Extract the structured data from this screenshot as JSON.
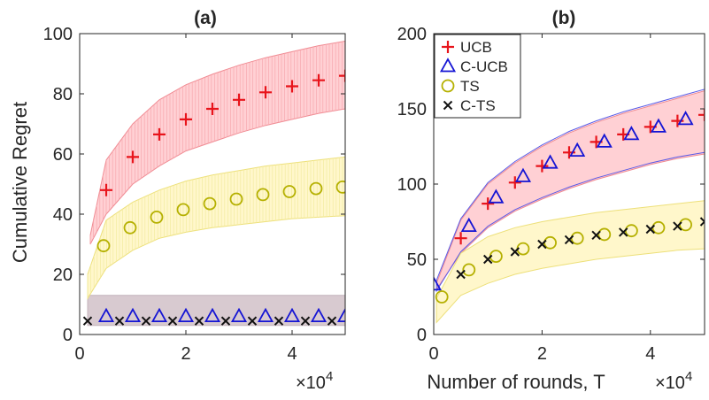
{
  "x_label": "Number of rounds, T",
  "y_label": "Cumulative Regret",
  "colors": {
    "ucb": "#e8141b",
    "cucb": "#1414d4",
    "ts": "#b5b000",
    "cts": "#111111",
    "ucb_band": "#ffc8cc",
    "ts_band": "#fff6c2",
    "cucb_band": "#d8cad0"
  },
  "legend": {
    "placement": "top-left of panel (b)",
    "entries": [
      {
        "name": "UCB",
        "marker": "plus",
        "color": "#e8141b"
      },
      {
        "name": "C-UCB",
        "marker": "triangle",
        "color": "#1414d4"
      },
      {
        "name": "TS",
        "marker": "circle",
        "color": "#b5b000"
      },
      {
        "name": "C-TS",
        "marker": "cross",
        "color": "#111111"
      }
    ]
  },
  "chart_data": [
    {
      "type": "scatter",
      "title": "(a)",
      "xlabel": "",
      "ylabel": "Cumulative Regret",
      "x_multiplier": "×10",
      "x_multiplier_exp": "4",
      "xlim": [
        0,
        50000
      ],
      "ylim": [
        0,
        100
      ],
      "xticks": [
        0,
        20000,
        40000
      ],
      "xtick_labels": [
        "0",
        "2",
        "4"
      ],
      "yticks": [
        0,
        20,
        40,
        60,
        80,
        100
      ],
      "ytick_labels": [
        "0",
        "20",
        "40",
        "60",
        "80",
        "100"
      ],
      "grid": false,
      "series": [
        {
          "name": "UCB",
          "key": "ucb",
          "marker": "plus",
          "x": [
            5000,
            10000,
            15000,
            20000,
            25000,
            30000,
            35000,
            40000,
            45000,
            50000
          ],
          "y": [
            48,
            59,
            66.5,
            71.5,
            75,
            78,
            80.5,
            82.5,
            84.5,
            86
          ],
          "band": {
            "x": [
              2000,
              5000,
              10000,
              15000,
              20000,
              25000,
              30000,
              35000,
              40000,
              45000,
              50000
            ],
            "lower": [
              30,
              40,
              50,
              56,
              61,
              64,
              67,
              69.5,
              71.5,
              73.5,
              75
            ],
            "upper": [
              33,
              58,
              70,
              78,
              83,
              86.5,
              89.5,
              92,
              94,
              96,
              97.5
            ]
          }
        },
        {
          "name": "C-UCB",
          "key": "cucb",
          "marker": "triangle",
          "x": [
            5000,
            10000,
            15000,
            20000,
            25000,
            30000,
            35000,
            40000,
            45000,
            50000
          ],
          "y": [
            6,
            6,
            6,
            6,
            6,
            6,
            6,
            6,
            6,
            6
          ],
          "band": {
            "x": [
              1500,
              50000
            ],
            "lower": [
              3,
              3
            ],
            "upper": [
              13,
              13
            ]
          }
        },
        {
          "name": "TS",
          "key": "ts",
          "marker": "circle",
          "x": [
            4500,
            9500,
            14500,
            19500,
            24500,
            29500,
            34500,
            39500,
            44500,
            49500
          ],
          "y": [
            29.5,
            35.5,
            39,
            41.5,
            43.5,
            45,
            46.5,
            47.5,
            48.5,
            49
          ],
          "band": {
            "x": [
              1500,
              5000,
              10000,
              15000,
              20000,
              25000,
              30000,
              35000,
              40000,
              45000,
              50000
            ],
            "lower": [
              12,
              22,
              28,
              32,
              34,
              35.5,
              36.5,
              37.5,
              38.5,
              39,
              39.5
            ],
            "upper": [
              20,
              38,
              44,
              48,
              51,
              53,
              54.5,
              56,
              57,
              58,
              59
            ]
          }
        },
        {
          "name": "C-TS",
          "key": "cts",
          "marker": "cross",
          "x": [
            1500,
            7500,
            12500,
            17500,
            22500,
            27500,
            32500,
            37500,
            42500,
            47500
          ],
          "y": [
            4.5,
            4.5,
            4.5,
            4.5,
            4.5,
            4.5,
            4.5,
            4.5,
            4.5,
            4.5
          ]
        }
      ]
    },
    {
      "type": "scatter",
      "title": "(b)",
      "xlabel": "Number of rounds, T",
      "ylabel": "",
      "x_multiplier": "×10",
      "x_multiplier_exp": "4",
      "xlim": [
        0,
        50000
      ],
      "ylim": [
        0,
        200
      ],
      "xticks": [
        0,
        20000,
        40000
      ],
      "xtick_labels": [
        "0",
        "2",
        "4"
      ],
      "yticks": [
        0,
        50,
        100,
        150,
        200
      ],
      "ytick_labels": [
        "0",
        "50",
        "100",
        "150",
        "200"
      ],
      "grid": false,
      "series": [
        {
          "name": "UCB",
          "key": "ucb",
          "marker": "plus",
          "x": [
            5000,
            10000,
            15000,
            20000,
            25000,
            30000,
            35000,
            40000,
            45000,
            50000
          ],
          "y": [
            64,
            87,
            101,
            112,
            121,
            128,
            133,
            138,
            142,
            146
          ],
          "band": {
            "x": [
              500,
              5000,
              10000,
              15000,
              20000,
              25000,
              30000,
              35000,
              40000,
              45000,
              50000
            ],
            "lower": [
              30,
              54,
              71,
              82,
              90,
              97,
              103,
              108,
              113,
              117,
              120
            ],
            "upper": [
              34,
              76,
              100,
              114,
              125,
              134,
              141,
              147,
              152,
              157,
              162
            ]
          }
        },
        {
          "name": "C-UCB",
          "key": "cucb",
          "marker": "triangle",
          "x": [
            0,
            6500,
            11500,
            16500,
            21500,
            26500,
            31500,
            36500,
            41500,
            46500
          ],
          "y": [
            33,
            72,
            91,
            105,
            114,
            122,
            128,
            133,
            138,
            143
          ],
          "band": {
            "x": [
              500,
              5000,
              10000,
              15000,
              20000,
              25000,
              30000,
              35000,
              40000,
              45000,
              50000
            ],
            "lower": [
              29,
              55,
              72,
              83,
              91,
              98,
              104,
              109,
              114,
              118,
              121
            ],
            "upper": [
              36,
              77,
              101,
              115,
              126,
              135,
              142,
              148,
              153,
              158,
              163
            ]
          }
        },
        {
          "name": "TS",
          "key": "ts",
          "marker": "circle",
          "x": [
            1500,
            6500,
            11500,
            16500,
            21500,
            26500,
            31500,
            36500,
            41500,
            46500
          ],
          "y": [
            25,
            43,
            52,
            57,
            61,
            64,
            66.5,
            69,
            71,
            73
          ],
          "band": {
            "x": [
              500,
              5000,
              10000,
              15000,
              20000,
              25000,
              30000,
              35000,
              40000,
              45000,
              50000
            ],
            "lower": [
              8,
              26,
              34,
              40,
              44,
              47,
              50,
              52,
              54,
              56,
              57
            ],
            "upper": [
              24,
              54,
              65,
              71,
              75,
              78,
              81,
              83,
              85,
              87,
              89
            ]
          }
        },
        {
          "name": "C-TS",
          "key": "cts",
          "marker": "cross",
          "x": [
            5000,
            10000,
            15000,
            20000,
            25000,
            30000,
            35000,
            40000,
            45000,
            50000
          ],
          "y": [
            40,
            50,
            55,
            60,
            63,
            66,
            68,
            70,
            72,
            75
          ]
        }
      ]
    }
  ]
}
